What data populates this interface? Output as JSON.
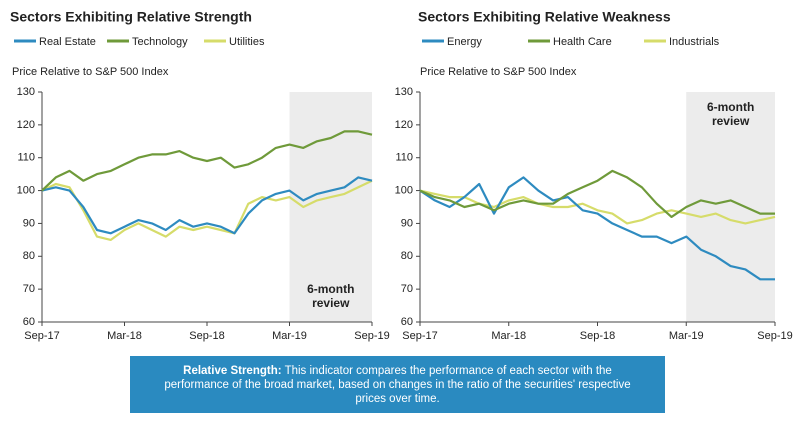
{
  "chart_data": [
    {
      "type": "line",
      "title": "Sectors Exhibiting Relative Strength",
      "ylabel": "Price Relative to S&P 500 Index",
      "categories": [
        "Sep-17",
        null,
        null,
        null,
        null,
        null,
        "Mar-18",
        null,
        null,
        null,
        null,
        null,
        "Sep-18",
        null,
        null,
        null,
        null,
        null,
        "Mar-19",
        null,
        null,
        null,
        null,
        null,
        "Sep-19"
      ],
      "series": [
        {
          "name": "Real Estate",
          "color": "#2e8bc0",
          "values": [
            100,
            101,
            100,
            95,
            88,
            87,
            89,
            91,
            90,
            88,
            91,
            89,
            90,
            89,
            87,
            93,
            97,
            99,
            100,
            97,
            99,
            100,
            101,
            104,
            103
          ]
        },
        {
          "name": "Technology",
          "color": "#6f9a3a",
          "values": [
            100,
            104,
            106,
            103,
            105,
            106,
            108,
            110,
            111,
            111,
            112,
            110,
            109,
            110,
            107,
            108,
            110,
            113,
            114,
            113,
            115,
            116,
            118,
            118,
            117
          ]
        },
        {
          "name": "Utilities",
          "color": "#d6dc6a",
          "values": [
            100,
            102,
            101,
            94,
            86,
            85,
            88,
            90,
            88,
            86,
            89,
            88,
            89,
            88,
            87,
            96,
            98,
            97,
            98,
            95,
            97,
            98,
            99,
            101,
            103
          ]
        }
      ],
      "ylim": [
        60,
        130
      ],
      "yticks": [
        60,
        70,
        80,
        90,
        100,
        110,
        120,
        130
      ],
      "grid": false,
      "shade": {
        "label": "6-month review",
        "from": "Mar-19",
        "to": "Sep-19",
        "label_position": "bottom"
      }
    },
    {
      "type": "line",
      "title": "Sectors Exhibiting Relative Weakness",
      "ylabel": "Price Relative to S&P 500 Index",
      "categories": [
        "Sep-17",
        null,
        null,
        null,
        null,
        null,
        "Mar-18",
        null,
        null,
        null,
        null,
        null,
        "Sep-18",
        null,
        null,
        null,
        null,
        null,
        "Mar-19",
        null,
        null,
        null,
        null,
        null,
        "Sep-19"
      ],
      "series": [
        {
          "name": "Energy",
          "color": "#2e8bc0",
          "values": [
            100,
            97,
            95,
            98,
            102,
            93,
            101,
            104,
            100,
            97,
            98,
            94,
            93,
            90,
            88,
            86,
            86,
            84,
            86,
            82,
            80,
            77,
            76,
            73,
            73
          ]
        },
        {
          "name": "Health Care",
          "color": "#6f9a3a",
          "values": [
            100,
            98,
            97,
            95,
            96,
            94,
            96,
            97,
            96,
            96,
            99,
            101,
            103,
            106,
            104,
            101,
            96,
            92,
            95,
            97,
            96,
            97,
            95,
            93,
            93
          ]
        },
        {
          "name": "Industrials",
          "color": "#d6dc6a",
          "values": [
            100,
            99,
            98,
            98,
            96,
            95,
            97,
            98,
            96,
            95,
            95,
            96,
            94,
            93,
            90,
            91,
            93,
            94,
            93,
            92,
            93,
            91,
            90,
            91,
            92
          ]
        }
      ],
      "ylim": [
        60,
        130
      ],
      "yticks": [
        60,
        70,
        80,
        90,
        100,
        110,
        120,
        130
      ],
      "grid": false,
      "shade": {
        "label": "6-month review",
        "from": "Mar-19",
        "to": "Sep-19",
        "label_position": "top"
      }
    }
  ],
  "caption": {
    "label": "Relative Strength:",
    "text": "This indicator compares the performance of each sector with the performance of the broad market, based on changes in the ratio of the securities' respective prices over time."
  }
}
